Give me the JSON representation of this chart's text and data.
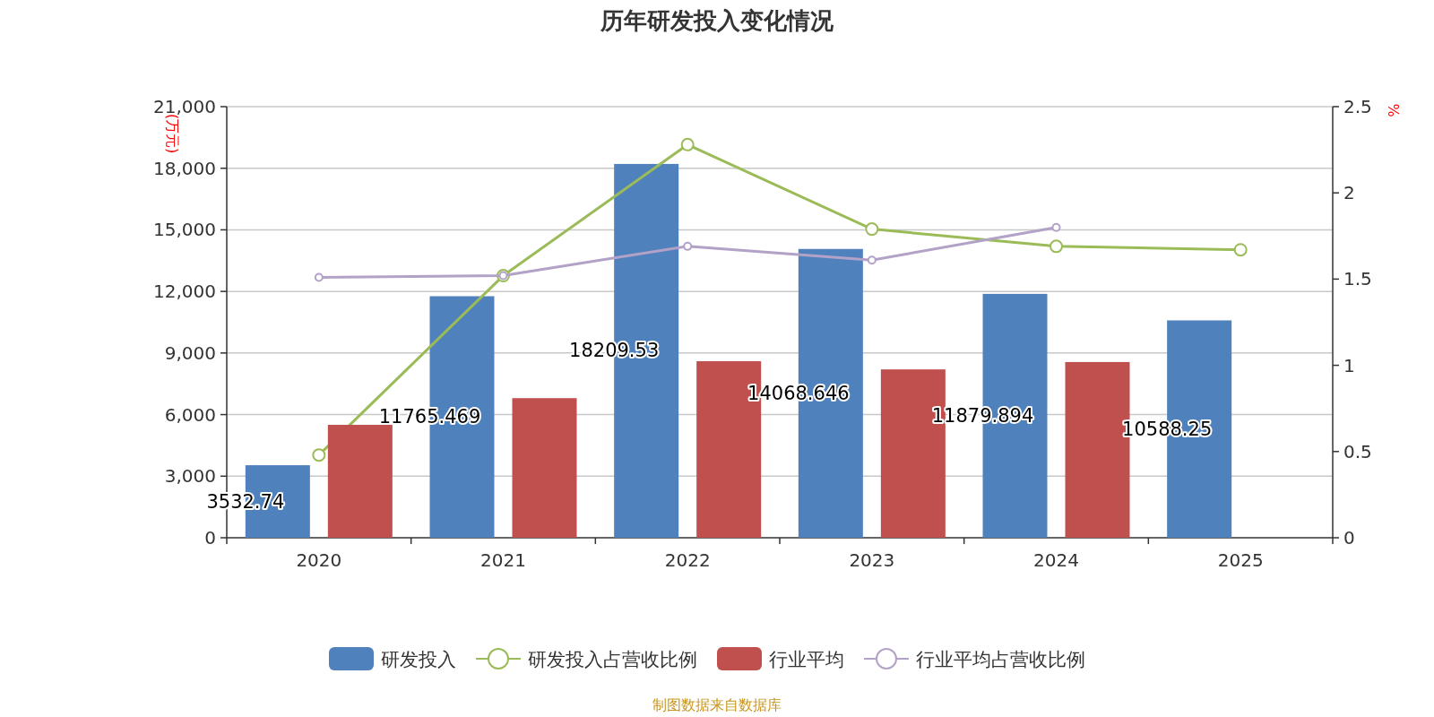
{
  "chart_data": {
    "type": "bar",
    "title": "历年研发投入变化情况",
    "ylabel": "(万元)",
    "y2label": "%",
    "annotations": [
      "制图数据来自数据库"
    ],
    "categories": [
      "2020",
      "2021",
      "2022",
      "2023",
      "2024",
      "2025"
    ],
    "series": [
      {
        "name": "研发投入",
        "type": "bar",
        "color": "#4f81bd",
        "values": [
          3532.74,
          11765.469,
          18209.53,
          14068.646,
          11879.894,
          10588.25
        ],
        "value_labels": [
          "3532.74",
          "11765.469",
          "18209.53",
          "14068.646",
          "11879.894",
          "10588.25"
        ]
      },
      {
        "name": "研发投入占营收比例",
        "type": "line",
        "axis": "y2",
        "color": "#9bbb59",
        "values": [
          0.48,
          1.52,
          2.28,
          1.79,
          1.69,
          1.67
        ]
      },
      {
        "name": "行业平均",
        "type": "bar",
        "color": "#c0504d",
        "values": [
          5500,
          6800,
          8600,
          8200,
          8560,
          null
        ]
      },
      {
        "name": "行业平均占营收比例",
        "type": "line",
        "axis": "y2",
        "color": "#b3a2c7",
        "values": [
          1.51,
          1.52,
          1.69,
          1.61,
          1.8,
          null
        ]
      }
    ],
    "ylim": [
      0,
      21000
    ],
    "yticks": [
      0,
      {
        "value": 3000,
        "label": "3,000"
      },
      {
        "value": 6000,
        "label": "6,000"
      },
      {
        "value": 9000,
        "label": "9,000"
      },
      {
        "value": 12000,
        "label": "12,000"
      },
      {
        "value": 15000,
        "label": "15,000"
      },
      {
        "value": 18000,
        "label": "18,000"
      },
      {
        "value": 21000,
        "label": "21,000"
      }
    ],
    "y2lim": [
      0,
      2.5
    ],
    "y2ticks": [
      0,
      0.5,
      1,
      1.5,
      2,
      2.5
    ],
    "grid": "y",
    "legend": "bottom",
    "marker": "circle"
  }
}
